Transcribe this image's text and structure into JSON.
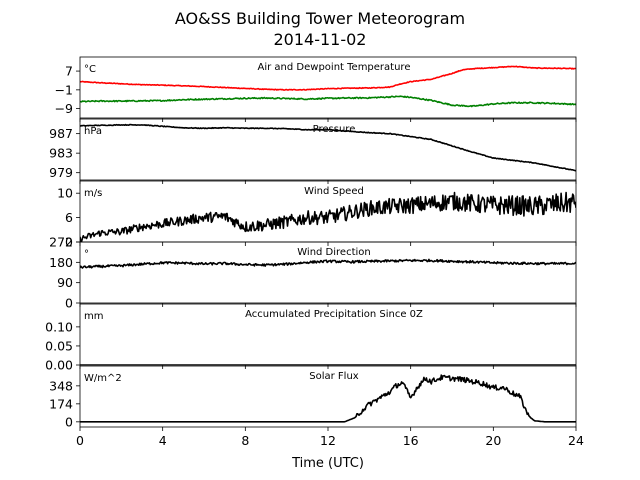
{
  "figure": {
    "title": "AO&SS Building Tower Meteorogram",
    "subtitle": "2014-11-02"
  },
  "chart_data": {
    "type": "line",
    "xlabel": "Time (UTC)",
    "x_ticks": [
      0,
      4,
      8,
      12,
      16,
      20,
      24
    ],
    "x_range": [
      0,
      24
    ],
    "panels": [
      {
        "title": "Air and Dewpoint Temperature",
        "unit": "°C",
        "ylim": [
          -13,
          13
        ],
        "y_ticks": [
          7,
          -1,
          -9
        ],
        "y_tick_labels": [
          "7",
          "−1",
          "−9"
        ],
        "series": [
          {
            "color": "#ff0000",
            "noise": 0.15,
            "points": [
              [
                0,
                2.5
              ],
              [
                1,
                2.0
              ],
              [
                2,
                1.6
              ],
              [
                3,
                1.2
              ],
              [
                4,
                1.0
              ],
              [
                5,
                0.7
              ],
              [
                6,
                0.4
              ],
              [
                7,
                0.0
              ],
              [
                8,
                -0.4
              ],
              [
                9,
                -0.8
              ],
              [
                10,
                -1.0
              ],
              [
                11,
                -0.9
              ],
              [
                12,
                -0.5
              ],
              [
                13,
                -0.3
              ],
              [
                14,
                -0.2
              ],
              [
                15,
                0.2
              ],
              [
                15.5,
                1.5
              ],
              [
                16,
                2.5
              ],
              [
                17,
                3.5
              ],
              [
                18,
                6.0
              ],
              [
                18.5,
                7.5
              ],
              [
                19,
                8.0
              ],
              [
                20,
                8.5
              ],
              [
                21,
                9.0
              ],
              [
                22,
                8.3
              ],
              [
                23,
                8.2
              ],
              [
                24,
                8.0
              ]
            ]
          },
          {
            "color": "#008000",
            "noise": 0.25,
            "points": [
              [
                0,
                -6.0
              ],
              [
                1,
                -5.8
              ],
              [
                2,
                -5.8
              ],
              [
                3,
                -5.7
              ],
              [
                4,
                -5.6
              ],
              [
                5,
                -5.2
              ],
              [
                6,
                -5.0
              ],
              [
                7,
                -4.8
              ],
              [
                8,
                -4.6
              ],
              [
                9,
                -4.5
              ],
              [
                10,
                -4.7
              ],
              [
                11,
                -4.9
              ],
              [
                12,
                -4.6
              ],
              [
                13,
                -4.5
              ],
              [
                14,
                -4.4
              ],
              [
                15,
                -4.0
              ],
              [
                15.5,
                -3.8
              ],
              [
                16,
                -4.2
              ],
              [
                17,
                -5.5
              ],
              [
                17.5,
                -6.5
              ],
              [
                18,
                -7.5
              ],
              [
                19,
                -8.0
              ],
              [
                20,
                -7.0
              ],
              [
                21,
                -6.5
              ],
              [
                22,
                -6.5
              ],
              [
                23,
                -6.8
              ],
              [
                24,
                -7.2
              ]
            ]
          }
        ]
      },
      {
        "title": "Pressure",
        "unit": "hPa",
        "ylim": [
          977.5,
          990
        ],
        "y_ticks": [
          987,
          983,
          979
        ],
        "y_tick_labels": [
          "987",
          "983",
          "979"
        ],
        "series": [
          {
            "color": "#000000",
            "noise": 0.07,
            "points": [
              [
                0,
                988.6
              ],
              [
                1,
                988.7
              ],
              [
                2,
                988.8
              ],
              [
                3,
                988.8
              ],
              [
                4,
                988.5
              ],
              [
                5,
                988.2
              ],
              [
                6,
                988.1
              ],
              [
                7,
                988.2
              ],
              [
                8,
                988.1
              ],
              [
                9,
                988.1
              ],
              [
                10,
                988.0
              ],
              [
                11,
                987.8
              ],
              [
                12,
                987.8
              ],
              [
                13,
                987.5
              ],
              [
                14,
                987.2
              ],
              [
                15,
                987.0
              ],
              [
                16,
                986.4
              ],
              [
                17,
                985.8
              ],
              [
                18,
                984.5
              ],
              [
                19,
                983.2
              ],
              [
                20,
                982.0
              ],
              [
                21,
                981.5
              ],
              [
                22,
                981.0
              ],
              [
                23,
                980.2
              ],
              [
                24,
                979.4
              ]
            ]
          }
        ]
      },
      {
        "title": "Wind Speed",
        "unit": "m/s",
        "ylim": [
          2,
          12
        ],
        "y_ticks": [
          10,
          6,
          2
        ],
        "y_tick_labels": [
          "10",
          "6",
          "2"
        ],
        "series": [
          {
            "color": "#000000",
            "noise": 1.0,
            "noise_growth": 1.3,
            "points": [
              [
                0,
                2.5
              ],
              [
                1,
                3.5
              ],
              [
                2,
                3.7
              ],
              [
                3,
                4.5
              ],
              [
                4,
                5.0
              ],
              [
                5,
                5.5
              ],
              [
                6,
                6.0
              ],
              [
                7,
                6.2
              ],
              [
                8,
                4.5
              ],
              [
                9,
                4.8
              ],
              [
                10,
                5.3
              ],
              [
                11,
                6.0
              ],
              [
                12,
                6.0
              ],
              [
                13,
                6.8
              ],
              [
                14,
                7.5
              ],
              [
                15,
                7.8
              ],
              [
                16,
                8.0
              ],
              [
                17,
                8.3
              ],
              [
                18,
                8.7
              ],
              [
                19,
                8.3
              ],
              [
                20,
                8.0
              ],
              [
                21,
                8.0
              ],
              [
                22,
                7.8
              ],
              [
                23,
                8.2
              ],
              [
                24,
                8.5
              ]
            ]
          }
        ]
      },
      {
        "title": "Wind Direction",
        "unit": "°",
        "ylim": [
          0,
          270
        ],
        "y_ticks": [
          270,
          180,
          90,
          0
        ],
        "y_tick_labels": [
          "270",
          "180",
          "90",
          "0"
        ],
        "series": [
          {
            "color": "#000000",
            "noise": 5,
            "points": [
              [
                0,
                158
              ],
              [
                1,
                162
              ],
              [
                2,
                165
              ],
              [
                3,
                172
              ],
              [
                4,
                178
              ],
              [
                5,
                177
              ],
              [
                6,
                173
              ],
              [
                7,
                175
              ],
              [
                8,
                170
              ],
              [
                9,
                168
              ],
              [
                10,
                172
              ],
              [
                11,
                180
              ],
              [
                12,
                185
              ],
              [
                13,
                182
              ],
              [
                14,
                184
              ],
              [
                15,
                186
              ],
              [
                16,
                188
              ],
              [
                17,
                188
              ],
              [
                18,
                185
              ],
              [
                19,
                182
              ],
              [
                20,
                178
              ],
              [
                21,
                176
              ],
              [
                22,
                175
              ],
              [
                23,
                174
              ],
              [
                24,
                176
              ]
            ]
          }
        ]
      },
      {
        "title": "Accumulated Precipitation Since 0Z",
        "unit": "mm",
        "ylim": [
          0,
          0.16
        ],
        "y_ticks": [
          0.1,
          0.05,
          0.0
        ],
        "y_tick_labels": [
          "0.10",
          "0.05",
          "0.00"
        ],
        "series": [
          {
            "color": "#000000",
            "noise": 0,
            "points": [
              [
                0,
                0
              ],
              [
                24,
                0
              ]
            ]
          }
        ]
      },
      {
        "title": "Solar Flux",
        "unit": "W/m^2",
        "ylim": [
          -50,
          540
        ],
        "y_ticks": [
          348,
          174,
          0
        ],
        "y_tick_labels": [
          "348",
          "174",
          "0"
        ],
        "series": [
          {
            "color": "#000000",
            "noise": 25,
            "noise_min_y": 60,
            "points": [
              [
                0,
                0
              ],
              [
                12.8,
                0
              ],
              [
                13.3,
                40
              ],
              [
                13.7,
                120
              ],
              [
                14,
                170
              ],
              [
                14.5,
                230
              ],
              [
                15,
                290
              ],
              [
                15.3,
                350
              ],
              [
                15.6,
                380
              ],
              [
                16,
                230
              ],
              [
                16.3,
                330
              ],
              [
                16.7,
                420
              ],
              [
                17,
                390
              ],
              [
                17.5,
                430
              ],
              [
                18,
                420
              ],
              [
                18.5,
                410
              ],
              [
                19,
                390
              ],
              [
                19.5,
                370
              ],
              [
                20,
                330
              ],
              [
                20.5,
                330
              ],
              [
                21,
                270
              ],
              [
                21.3,
                240
              ],
              [
                21.6,
                100
              ],
              [
                21.8,
                40
              ],
              [
                22,
                10
              ],
              [
                22.5,
                0
              ],
              [
                24,
                0
              ]
            ]
          }
        ]
      }
    ]
  }
}
